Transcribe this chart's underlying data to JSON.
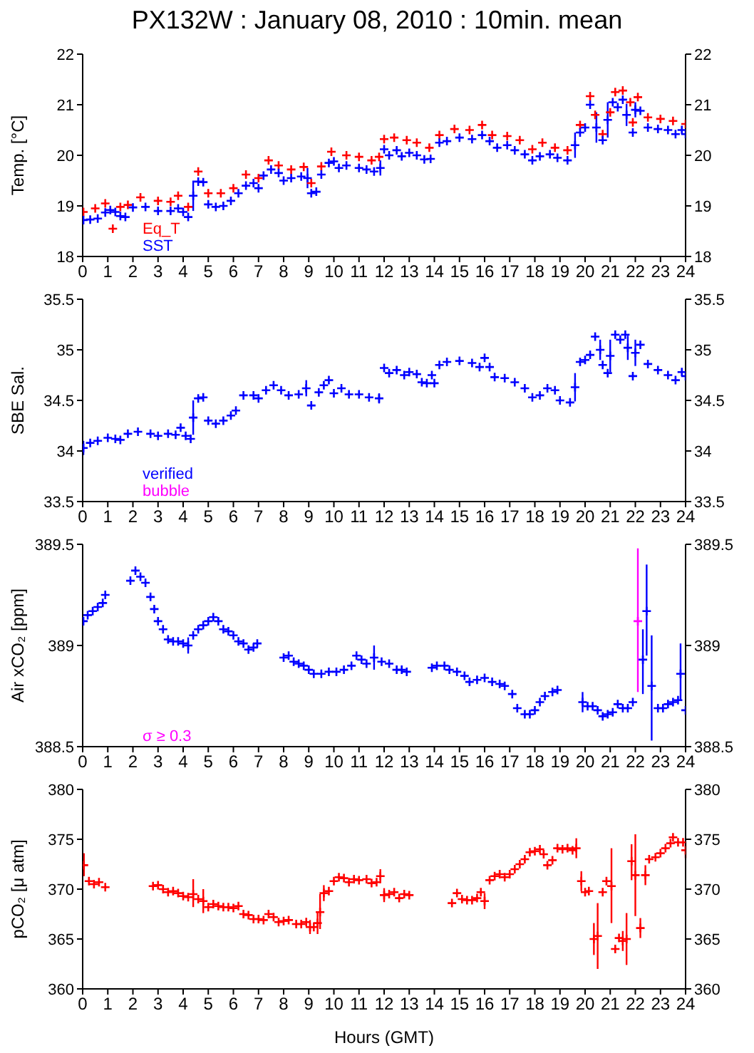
{
  "chart_data": [
    {
      "type": "scatter",
      "title": "PX132W : January 08, 2010 : 10min. mean",
      "ylabel": "Temp. [°C]",
      "xlim": [
        0,
        24
      ],
      "xticks": [
        0,
        1,
        2,
        3,
        4,
        5,
        6,
        7,
        8,
        9,
        10,
        11,
        12,
        13,
        14,
        15,
        16,
        17,
        18,
        19,
        20,
        21,
        22,
        23,
        24
      ],
      "ylim": [
        18,
        22
      ],
      "yticks": [
        18,
        19,
        20,
        21,
        22
      ],
      "y2lim": [
        18,
        22
      ],
      "y2ticks": [
        18,
        19,
        20,
        21,
        22
      ],
      "legend": "bottom left",
      "marker": "cross",
      "series": [
        {
          "name": "Eq_T",
          "color": "#ff0000",
          "x": [
            0.03,
            0.5,
            0.9,
            1.2,
            1.5,
            1.8,
            2.3,
            3.0,
            3.5,
            3.8,
            4.2,
            4.6,
            5.0,
            5.5,
            6.0,
            6.5,
            7.0,
            7.4,
            7.8,
            8.3,
            8.8,
            9.1,
            9.5,
            9.9,
            10.5,
            11.0,
            11.5,
            11.8,
            12.0,
            12.4,
            12.9,
            13.3,
            13.8,
            14.2,
            14.8,
            15.4,
            15.9,
            16.3,
            16.9,
            17.4,
            17.9,
            18.3,
            18.8,
            19.3,
            19.8,
            20.2,
            20.4,
            20.7,
            21.0,
            21.2,
            21.5,
            21.8,
            21.9,
            22.1,
            22.5,
            23.0,
            23.5,
            24.0
          ],
          "values": [
            18.88,
            18.95,
            19.05,
            18.55,
            18.98,
            19.02,
            19.17,
            19.1,
            19.08,
            19.2,
            18.98,
            19.68,
            19.25,
            19.25,
            19.35,
            19.62,
            19.55,
            19.9,
            19.8,
            19.72,
            19.77,
            19.45,
            19.78,
            20.07,
            20.0,
            19.97,
            19.9,
            19.97,
            20.32,
            20.35,
            20.3,
            20.25,
            20.15,
            20.4,
            20.52,
            20.5,
            20.6,
            20.4,
            20.38,
            20.3,
            20.12,
            20.25,
            20.15,
            20.1,
            20.6,
            21.17,
            20.8,
            20.42,
            20.85,
            21.25,
            21.28,
            21.05,
            20.65,
            21.15,
            20.75,
            20.72,
            20.68,
            20.62
          ]
        },
        {
          "name": "SST",
          "color": "#0000ff",
          "x": [
            0.03,
            0.3,
            0.6,
            0.9,
            1.1,
            1.3,
            1.5,
            1.7,
            2.0,
            2.5,
            3.0,
            3.5,
            3.8,
            4.0,
            4.2,
            4.4,
            4.6,
            4.8,
            5.0,
            5.3,
            5.6,
            5.9,
            6.2,
            6.5,
            6.8,
            7.0,
            7.2,
            7.5,
            7.8,
            8.0,
            8.3,
            8.7,
            8.95,
            9.1,
            9.3,
            9.5,
            9.8,
            10.0,
            10.2,
            10.5,
            11.0,
            11.3,
            11.6,
            11.85,
            12.0,
            12.2,
            12.5,
            12.7,
            13.0,
            13.3,
            13.6,
            13.85,
            14.2,
            14.5,
            15.0,
            15.5,
            15.9,
            16.2,
            16.5,
            16.9,
            17.2,
            17.6,
            17.9,
            18.2,
            18.6,
            18.9,
            19.3,
            19.6,
            19.8,
            20.0,
            20.2,
            20.45,
            20.7,
            20.9,
            21.1,
            21.3,
            21.5,
            21.65,
            21.9,
            22.0,
            22.2,
            22.5,
            22.9,
            23.3,
            23.6,
            23.85,
            24.0
          ],
          "values": [
            18.72,
            18.73,
            18.75,
            18.87,
            18.92,
            18.88,
            18.8,
            18.78,
            18.97,
            18.98,
            18.9,
            18.9,
            18.95,
            18.88,
            18.78,
            19.2,
            19.48,
            19.47,
            19.03,
            18.98,
            19.0,
            19.1,
            19.25,
            19.4,
            19.45,
            19.35,
            19.6,
            19.72,
            19.65,
            19.5,
            19.55,
            19.58,
            19.55,
            19.25,
            19.28,
            19.62,
            19.85,
            19.88,
            19.75,
            19.8,
            19.75,
            19.72,
            19.68,
            19.75,
            20.12,
            20.0,
            20.1,
            19.98,
            20.05,
            20.0,
            19.92,
            19.93,
            20.25,
            20.28,
            20.35,
            20.32,
            20.4,
            20.28,
            20.15,
            20.2,
            20.1,
            20.02,
            19.9,
            19.98,
            20.02,
            19.95,
            19.9,
            20.2,
            20.45,
            20.55,
            21.0,
            20.55,
            20.3,
            20.7,
            21.05,
            20.95,
            21.1,
            20.8,
            20.45,
            20.9,
            20.88,
            20.55,
            20.52,
            20.5,
            20.42,
            20.5,
            20.42
          ],
          "errors": [
            null,
            null,
            null,
            null,
            null,
            null,
            null,
            null,
            null,
            null,
            null,
            null,
            null,
            null,
            null,
            0.3,
            null,
            null,
            null,
            null,
            null,
            null,
            null,
            null,
            null,
            null,
            null,
            null,
            null,
            null,
            null,
            null,
            0.2,
            null,
            null,
            null,
            null,
            null,
            null,
            null,
            null,
            null,
            null,
            0.15,
            null,
            null,
            null,
            null,
            null,
            null,
            null,
            null,
            null,
            null,
            null,
            null,
            null,
            null,
            null,
            null,
            null,
            null,
            null,
            null,
            null,
            null,
            null,
            0.25,
            null,
            null,
            null,
            0.3,
            null,
            0.35,
            null,
            null,
            null,
            0.22,
            null,
            0.15,
            null,
            null,
            null,
            null,
            null,
            null,
            null
          ]
        }
      ]
    },
    {
      "type": "scatter",
      "ylabel": "SBE Sal.",
      "xlim": [
        0,
        24
      ],
      "xticks": [
        0,
        1,
        2,
        3,
        4,
        5,
        6,
        7,
        8,
        9,
        10,
        11,
        12,
        13,
        14,
        15,
        16,
        17,
        18,
        19,
        20,
        21,
        22,
        23,
        24
      ],
      "ylim": [
        33.5,
        35.5
      ],
      "yticks": [
        33.5,
        34,
        34.5,
        35,
        35.5
      ],
      "y2lim": [
        33.5,
        35.5
      ],
      "y2ticks": [
        33.5,
        34,
        34.5,
        35,
        35.5
      ],
      "legend": "bottom left",
      "marker": "cross",
      "series": [
        {
          "name": "verified",
          "color": "#0000ff",
          "x": [
            0.03,
            0.3,
            0.6,
            1.0,
            1.3,
            1.5,
            1.8,
            2.2,
            2.7,
            3.0,
            3.4,
            3.7,
            3.9,
            4.1,
            4.3,
            4.4,
            4.6,
            4.8,
            5.0,
            5.3,
            5.6,
            5.9,
            6.1,
            6.4,
            6.8,
            7.0,
            7.3,
            7.6,
            7.9,
            8.2,
            8.6,
            8.9,
            9.1,
            9.4,
            9.6,
            9.8,
            10.0,
            10.3,
            10.6,
            11.0,
            11.4,
            11.8,
            12.0,
            12.2,
            12.5,
            12.8,
            13.0,
            13.3,
            13.5,
            13.7,
            13.9,
            14.0,
            14.2,
            14.5,
            15.0,
            15.5,
            15.8,
            16.0,
            16.2,
            16.4,
            16.8,
            17.2,
            17.6,
            17.9,
            18.2,
            18.5,
            18.8,
            19.0,
            19.4,
            19.6,
            19.8,
            20.0,
            20.2,
            20.4,
            20.6,
            20.7,
            20.9,
            21.0,
            21.2,
            21.4,
            21.6,
            21.7,
            21.9,
            22.0,
            22.2,
            22.5,
            22.9,
            23.3,
            23.6,
            23.85,
            24.0
          ],
          "values": [
            34.03,
            34.08,
            34.1,
            34.13,
            34.12,
            34.11,
            34.17,
            34.19,
            34.17,
            34.15,
            34.17,
            34.16,
            34.23,
            34.15,
            34.12,
            34.33,
            34.52,
            34.53,
            34.3,
            34.27,
            34.3,
            34.35,
            34.4,
            34.55,
            34.55,
            34.52,
            34.6,
            34.65,
            34.6,
            34.55,
            34.56,
            34.62,
            34.45,
            34.58,
            34.65,
            34.7,
            34.57,
            34.62,
            34.56,
            34.56,
            34.53,
            34.52,
            34.82,
            34.77,
            34.8,
            34.75,
            34.78,
            34.76,
            34.68,
            34.67,
            34.75,
            34.67,
            34.85,
            34.88,
            34.89,
            34.87,
            34.83,
            34.92,
            34.83,
            34.73,
            34.72,
            34.68,
            34.62,
            34.53,
            34.55,
            34.62,
            34.6,
            34.5,
            34.48,
            34.63,
            34.88,
            34.9,
            34.95,
            35.13,
            35.0,
            34.85,
            34.77,
            34.94,
            35.15,
            35.1,
            35.15,
            35.02,
            34.74,
            34.97,
            35.05,
            34.86,
            34.8,
            34.75,
            34.7,
            34.78,
            34.74
          ],
          "errors": [
            0.07,
            null,
            null,
            null,
            null,
            null,
            null,
            null,
            null,
            null,
            null,
            null,
            null,
            null,
            null,
            0.17,
            null,
            null,
            null,
            null,
            null,
            null,
            null,
            null,
            null,
            null,
            null,
            null,
            null,
            null,
            null,
            0.08,
            null,
            null,
            null,
            null,
            null,
            null,
            null,
            null,
            null,
            0.05,
            null,
            null,
            null,
            null,
            null,
            null,
            null,
            null,
            null,
            null,
            null,
            null,
            null,
            null,
            null,
            null,
            null,
            null,
            null,
            null,
            null,
            null,
            null,
            null,
            null,
            null,
            null,
            0.14,
            null,
            null,
            null,
            null,
            0.1,
            null,
            null,
            0.16,
            null,
            null,
            null,
            0.12,
            null,
            0.13,
            null,
            null,
            null,
            null,
            null,
            null,
            null
          ]
        },
        {
          "name": "bubble",
          "color": "#ff00ff"
        }
      ]
    },
    {
      "type": "scatter",
      "ylabel": "Air xCO₂ [ppm]",
      "xlim": [
        0,
        24
      ],
      "xticks": [
        0,
        1,
        2,
        3,
        4,
        5,
        6,
        7,
        8,
        9,
        10,
        11,
        12,
        13,
        14,
        15,
        16,
        17,
        18,
        19,
        20,
        21,
        22,
        23,
        24
      ],
      "ylim": [
        388.5,
        389.5
      ],
      "yticks": [
        388.5,
        389,
        389.5
      ],
      "y2lim": [
        388.5,
        389.5
      ],
      "y2ticks": [
        388.5,
        389,
        389.5
      ],
      "legend": "bottom left",
      "marker": "cross",
      "series": [
        {
          "color": "#0000ff",
          "x": [
            0.03,
            0.2,
            0.4,
            0.6,
            0.8,
            0.9,
            1.9,
            2.1,
            2.3,
            2.5,
            2.7,
            2.85,
            3.0,
            3.2,
            3.4,
            3.6,
            3.8,
            4.0,
            4.2,
            4.4,
            4.6,
            4.8,
            5.0,
            5.2,
            5.4,
            5.6,
            5.8,
            6.0,
            6.2,
            6.4,
            6.6,
            6.8,
            6.95,
            8.0,
            8.2,
            8.4,
            8.6,
            8.8,
            9.0,
            9.2,
            9.5,
            9.8,
            10.1,
            10.4,
            10.7,
            10.9,
            11.1,
            11.3,
            11.6,
            11.9,
            12.2,
            12.5,
            12.7,
            12.9,
            13.9,
            14.1,
            14.4,
            14.6,
            14.9,
            15.2,
            15.4,
            15.7,
            16.0,
            16.3,
            16.6,
            16.8,
            17.1,
            17.3,
            17.6,
            17.8,
            18.0,
            18.2,
            18.4,
            18.7,
            18.9,
            19.9,
            20.1,
            20.3,
            20.5,
            20.7,
            20.9,
            21.1,
            21.3,
            21.5,
            21.7,
            21.9,
            22.3,
            22.45,
            22.65,
            22.9,
            23.1,
            23.3,
            23.5,
            23.7,
            23.8,
            24.0
          ],
          "values": [
            389.12,
            389.15,
            389.17,
            389.19,
            389.21,
            389.25,
            389.32,
            389.37,
            389.34,
            389.31,
            389.24,
            389.18,
            389.12,
            389.08,
            389.03,
            389.02,
            389.02,
            389.01,
            389.0,
            389.05,
            389.08,
            389.1,
            389.12,
            389.14,
            389.12,
            389.08,
            389.07,
            389.05,
            389.02,
            389.01,
            388.98,
            388.99,
            389.01,
            388.94,
            388.95,
            388.92,
            388.91,
            388.9,
            388.88,
            388.86,
            388.86,
            388.87,
            388.87,
            388.88,
            388.9,
            388.95,
            388.93,
            388.91,
            388.94,
            388.92,
            388.91,
            388.88,
            388.88,
            388.87,
            388.89,
            388.9,
            388.9,
            388.88,
            388.87,
            388.85,
            388.82,
            388.83,
            388.84,
            388.82,
            388.81,
            388.8,
            388.76,
            388.69,
            388.66,
            388.66,
            388.68,
            388.72,
            388.75,
            388.77,
            388.78,
            388.72,
            388.7,
            388.7,
            388.68,
            388.65,
            388.66,
            388.67,
            388.71,
            388.69,
            388.69,
            388.72,
            388.93,
            389.17,
            388.8,
            388.69,
            388.69,
            388.71,
            388.72,
            388.73,
            388.86,
            388.68
          ],
          "errors": [
            null,
            null,
            null,
            null,
            null,
            null,
            null,
            null,
            null,
            null,
            null,
            null,
            null,
            null,
            null,
            null,
            null,
            null,
            0.04,
            null,
            null,
            null,
            null,
            null,
            null,
            null,
            null,
            null,
            null,
            null,
            null,
            null,
            null,
            null,
            null,
            null,
            null,
            null,
            null,
            null,
            null,
            null,
            null,
            null,
            null,
            null,
            null,
            null,
            0.06,
            null,
            null,
            null,
            null,
            null,
            null,
            null,
            null,
            null,
            null,
            null,
            null,
            null,
            null,
            null,
            null,
            null,
            null,
            null,
            null,
            null,
            null,
            null,
            null,
            null,
            null,
            0.05,
            null,
            null,
            null,
            null,
            null,
            null,
            null,
            null,
            null,
            null,
            [
              388.76,
              389.08
            ],
            [
              388.95,
              389.4
            ],
            [
              388.53,
              389.05
            ],
            null,
            null,
            null,
            null,
            null,
            [
              388.73,
              389.01
            ],
            null
          ]
        },
        {
          "name": "σ ≥ 0.3",
          "color": "#ff00ff",
          "x": [
            22.1
          ],
          "values": [
            389.12
          ],
          "errors": [
            [
              388.77,
              389.48
            ]
          ]
        }
      ]
    },
    {
      "type": "scatter",
      "xlabel": "Hours (GMT)",
      "ylabel": "pCO₂ [μ atm]",
      "xlim": [
        0,
        24
      ],
      "xticks": [
        0,
        1,
        2,
        3,
        4,
        5,
        6,
        7,
        8,
        9,
        10,
        11,
        12,
        13,
        14,
        15,
        16,
        17,
        18,
        19,
        20,
        21,
        22,
        23,
        24
      ],
      "ylim": [
        360,
        380
      ],
      "yticks": [
        360,
        365,
        370,
        375,
        380
      ],
      "y2lim": [
        360,
        380
      ],
      "y2ticks": [
        360,
        365,
        370,
        375,
        380
      ],
      "marker": "cross",
      "series": [
        {
          "color": "#ff0000",
          "x": [
            0.05,
            0.25,
            0.45,
            0.65,
            0.9,
            2.8,
            3.0,
            3.2,
            3.4,
            3.6,
            3.8,
            4.0,
            4.2,
            4.4,
            4.6,
            4.8,
            5.0,
            5.2,
            5.4,
            5.6,
            5.8,
            6.0,
            6.2,
            6.4,
            6.6,
            6.8,
            7.0,
            7.2,
            7.4,
            7.6,
            7.8,
            8.0,
            8.2,
            8.5,
            8.7,
            8.9,
            9.05,
            9.2,
            9.35,
            9.45,
            9.6,
            9.8,
            10.0,
            10.2,
            10.4,
            10.6,
            10.8,
            11.0,
            11.3,
            11.5,
            11.7,
            11.85,
            12.0,
            12.2,
            12.4,
            12.6,
            12.8,
            13.0,
            14.7,
            14.9,
            15.1,
            15.3,
            15.5,
            15.7,
            15.85,
            16.0,
            16.2,
            16.4,
            16.6,
            16.8,
            17.0,
            17.2,
            17.4,
            17.6,
            17.8,
            18.0,
            18.2,
            18.35,
            18.5,
            18.7,
            18.9,
            19.1,
            19.3,
            19.5,
            19.65,
            19.85,
            20.0,
            20.15,
            20.35,
            20.5,
            20.7,
            20.85,
            21.05,
            21.2,
            21.35,
            21.5,
            21.65,
            21.85,
            22.0,
            22.2,
            22.4,
            22.55,
            22.8,
            23.0,
            23.2,
            23.4,
            23.5,
            23.7,
            23.9,
            24.0
          ],
          "values": [
            372.4,
            370.8,
            370.5,
            370.7,
            370.2,
            370.3,
            370.4,
            370.0,
            369.7,
            369.8,
            369.6,
            369.3,
            369.2,
            369.5,
            369.0,
            368.8,
            368.2,
            368.5,
            368.3,
            368.2,
            368.2,
            368.1,
            368.3,
            367.5,
            367.4,
            367.0,
            367.0,
            366.9,
            367.5,
            367.2,
            366.7,
            366.8,
            366.9,
            366.5,
            366.5,
            366.7,
            366.2,
            366.2,
            366.6,
            367.7,
            369.6,
            369.8,
            370.8,
            371.2,
            371.1,
            370.7,
            371.0,
            370.9,
            371.0,
            370.6,
            370.7,
            371.3,
            369.4,
            369.5,
            369.7,
            369.1,
            369.5,
            369.4,
            368.6,
            369.6,
            369.0,
            368.9,
            368.9,
            369.1,
            369.7,
            368.8,
            370.9,
            371.3,
            371.5,
            371.2,
            371.5,
            372.0,
            372.5,
            373.0,
            373.7,
            373.8,
            374.0,
            373.5,
            372.4,
            372.9,
            374.1,
            374.0,
            374.1,
            373.9,
            374.1,
            370.8,
            369.7,
            369.8,
            365.0,
            365.3,
            369.7,
            370.8,
            370.3,
            364.0,
            365.1,
            364.8,
            365.0,
            372.8,
            371.4,
            366.1,
            371.4,
            373.0,
            373.2,
            373.6,
            374.1,
            374.6,
            375.2,
            374.7,
            374.7,
            373.9
          ],
          "errors": [
            [
              371.3,
              373.6
            ],
            null,
            null,
            null,
            null,
            null,
            null,
            null,
            null,
            null,
            null,
            null,
            null,
            [
              368.2,
              371.0
            ],
            null,
            1.2,
            null,
            null,
            null,
            null,
            null,
            null,
            null,
            null,
            null,
            null,
            null,
            null,
            null,
            null,
            null,
            null,
            null,
            null,
            null,
            null,
            0.7,
            null,
            1.1,
            [
              366.0,
              369.5
            ],
            0.8,
            null,
            null,
            null,
            null,
            null,
            null,
            null,
            null,
            null,
            null,
            0.7,
            0.7,
            null,
            null,
            null,
            null,
            null,
            null,
            null,
            null,
            null,
            null,
            null,
            null,
            0.8,
            null,
            null,
            null,
            null,
            null,
            null,
            null,
            null,
            null,
            null,
            null,
            null,
            null,
            null,
            null,
            null,
            null,
            null,
            1.0,
            1.0,
            null,
            null,
            [
              363.4,
              366.6
            ],
            [
              362.0,
              368.6
            ],
            null,
            null,
            [
              366.6,
              374.1
            ],
            null,
            null,
            1.0,
            [
              362.4,
              367.6
            ],
            [
              370.9,
              374.5
            ],
            [
              367.3,
              375.5
            ],
            1.0,
            1.0,
            null,
            null,
            null,
            null,
            null,
            null,
            null,
            null,
            0.8
          ]
        }
      ]
    }
  ]
}
